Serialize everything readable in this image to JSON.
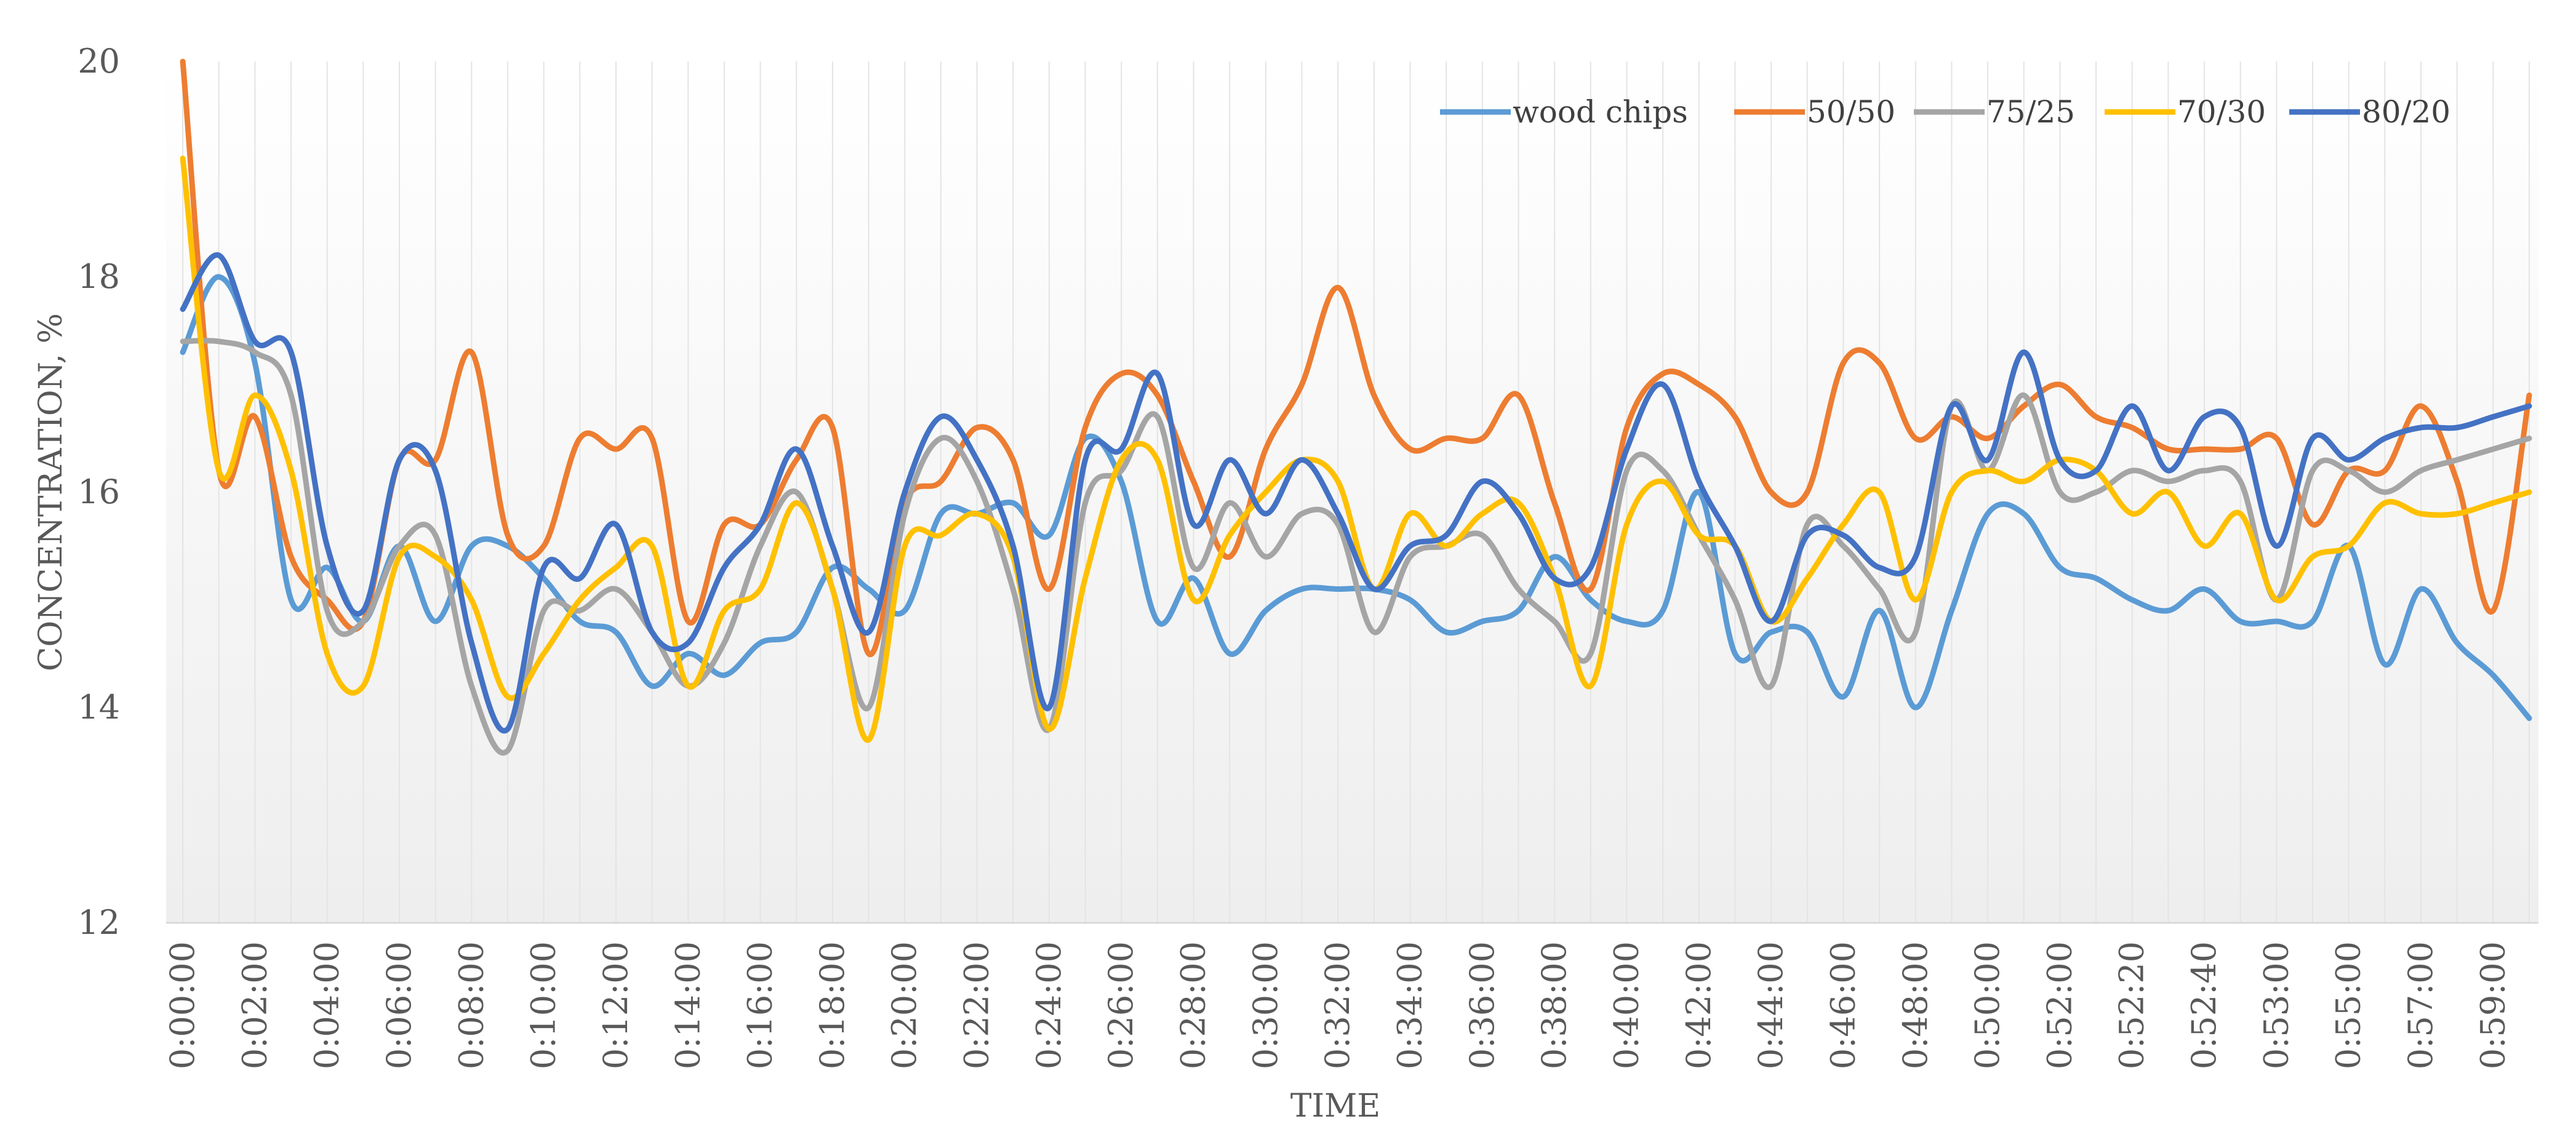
{
  "chart_data": {
    "type": "line",
    "title": "",
    "xlabel": "TIME",
    "ylabel": "CONCENTRATION, %",
    "ylim": [
      12,
      20
    ],
    "yticks": [
      12,
      14,
      16,
      18,
      20
    ],
    "legend_position": "top-right",
    "grid": "vertical",
    "categories": [
      "0:00:00",
      "0:01:00",
      "0:02:00",
      "0:03:00",
      "0:04:00",
      "0:05:00",
      "0:06:00",
      "0:07:00",
      "0:08:00",
      "0:09:00",
      "0:10:00",
      "0:11:00",
      "0:12:00",
      "0:13:00",
      "0:14:00",
      "0:15:00",
      "0:16:00",
      "0:17:00",
      "0:18:00",
      "0:19:00",
      "0:20:00",
      "0:21:00",
      "0:22:00",
      "0:23:00",
      "0:24:00",
      "0:25:00",
      "0:26:00",
      "0:27:00",
      "0:28:00",
      "0:29:00",
      "0:30:00",
      "0:31:00",
      "0:32:00",
      "0:33:00",
      "0:34:00",
      "0:35:00",
      "0:36:00",
      "0:37:00",
      "0:38:00",
      "0:39:00",
      "0:40:00",
      "0:41:00",
      "0:42:00",
      "0:43:00",
      "0:44:00",
      "0:45:00",
      "0:46:00",
      "0:47:00",
      "0:48:00",
      "0:49:00",
      "0:50:00",
      "0:51:00",
      "0:52:00",
      "0:52:10",
      "0:52:20",
      "0:52:30",
      "0:52:40",
      "0:52:50",
      "0:53:00",
      "0:54:00",
      "0:55:00",
      "0:56:00",
      "0:57:00",
      "0:58:00",
      "0:59:00",
      "1:00:00"
    ],
    "tick_labels_shown": [
      "0:00:00",
      "0:02:00",
      "0:04:00",
      "0:06:00",
      "0:08:00",
      "0:10:00",
      "0:12:00",
      "0:14:00",
      "0:16:00",
      "0:18:00",
      "0:20:00",
      "0:22:00",
      "0:24:00",
      "0:26:00",
      "0:28:00",
      "0:30:00",
      "0:32:00",
      "0:34:00",
      "0:36:00",
      "0:38:00",
      "0:40:00",
      "0:42:00",
      "0:44:00",
      "0:46:00",
      "0:48:00",
      "0:50:00",
      "0:52:00",
      "0:52:20",
      "0:52:40",
      "0:53:00",
      "0:55:00",
      "0:57:00",
      "0:59:00"
    ],
    "series": [
      {
        "name": "wood chips",
        "color": "#5B9BD5",
        "values": [
          17.3,
          18.0,
          17.2,
          15.0,
          15.3,
          14.8,
          15.5,
          14.8,
          15.5,
          15.5,
          15.2,
          14.8,
          14.7,
          14.2,
          14.5,
          14.3,
          14.6,
          14.7,
          15.3,
          15.1,
          14.9,
          15.8,
          15.8,
          15.9,
          15.6,
          16.5,
          16.1,
          14.8,
          15.2,
          14.5,
          14.9,
          15.1,
          15.1,
          15.1,
          15.0,
          14.7,
          14.8,
          14.9,
          15.4,
          15.0,
          14.8,
          14.9,
          16.0,
          14.5,
          14.7,
          14.7,
          14.1,
          14.9,
          14.0,
          14.9,
          15.8,
          15.8,
          15.3,
          15.2,
          15.0,
          14.9,
          15.1,
          14.8,
          14.8,
          14.8,
          15.5,
          14.4,
          15.1,
          14.6,
          14.3,
          13.9
        ]
      },
      {
        "name": "50/50",
        "color": "#ED7D31",
        "values": [
          20.0,
          16.2,
          16.7,
          15.4,
          15.0,
          14.8,
          16.3,
          16.3,
          17.3,
          15.6,
          15.5,
          16.5,
          16.4,
          16.5,
          14.8,
          15.7,
          15.7,
          16.3,
          16.6,
          14.5,
          15.9,
          16.1,
          16.6,
          16.3,
          15.1,
          16.6,
          17.1,
          16.9,
          16.1,
          15.4,
          16.4,
          17.0,
          17.9,
          16.9,
          16.4,
          16.5,
          16.5,
          16.9,
          15.9,
          15.1,
          16.6,
          17.1,
          17.0,
          16.7,
          16.0,
          16.0,
          17.2,
          17.2,
          16.5,
          16.7,
          16.5,
          16.8,
          17.0,
          16.7,
          16.6,
          16.4,
          16.4,
          16.4,
          16.5,
          15.7,
          16.2,
          16.2,
          16.8,
          16.1,
          14.9,
          16.9
        ]
      },
      {
        "name": "75/25",
        "color": "#A5A5A5",
        "values": [
          17.4,
          17.4,
          17.3,
          16.9,
          14.9,
          14.8,
          15.5,
          15.6,
          14.2,
          13.6,
          14.9,
          14.9,
          15.1,
          14.7,
          14.2,
          14.6,
          15.5,
          16.0,
          15.1,
          14.0,
          15.8,
          16.5,
          16.1,
          15.1,
          13.8,
          15.9,
          16.2,
          16.7,
          15.3,
          15.9,
          15.4,
          15.8,
          15.7,
          14.7,
          15.4,
          15.5,
          15.6,
          15.1,
          14.8,
          14.5,
          16.2,
          16.2,
          15.6,
          15.0,
          14.2,
          15.7,
          15.5,
          15.1,
          14.7,
          16.8,
          16.2,
          16.9,
          16.0,
          16.0,
          16.2,
          16.1,
          16.2,
          16.1,
          15.0,
          16.2,
          16.2,
          16.0,
          16.2,
          16.3,
          16.4,
          16.5
        ]
      },
      {
        "name": "70/30",
        "color": "#FFC000",
        "values": [
          19.1,
          16.2,
          16.9,
          16.2,
          14.5,
          14.2,
          15.4,
          15.4,
          15.0,
          14.1,
          14.5,
          15.0,
          15.3,
          15.5,
          14.2,
          14.9,
          15.1,
          15.9,
          15.1,
          13.7,
          15.5,
          15.6,
          15.8,
          15.4,
          13.8,
          15.2,
          16.3,
          16.3,
          15.0,
          15.6,
          16.0,
          16.3,
          16.1,
          15.1,
          15.8,
          15.5,
          15.8,
          15.9,
          15.2,
          14.2,
          15.7,
          16.1,
          15.6,
          15.5,
          14.8,
          15.2,
          15.7,
          16.0,
          15.0,
          16.0,
          16.2,
          16.1,
          16.3,
          16.2,
          15.8,
          16.0,
          15.5,
          15.8,
          15.0,
          15.4,
          15.5,
          15.9,
          15.8,
          15.8,
          15.9,
          16.0
        ]
      },
      {
        "name": "80/20",
        "color": "#4472C4",
        "values": [
          17.7,
          18.2,
          17.4,
          17.3,
          15.5,
          14.9,
          16.3,
          16.2,
          14.6,
          13.8,
          15.3,
          15.2,
          15.7,
          14.7,
          14.6,
          15.3,
          15.7,
          16.4,
          15.5,
          14.7,
          16.0,
          16.7,
          16.3,
          15.5,
          14.0,
          16.3,
          16.4,
          17.1,
          15.7,
          16.3,
          15.8,
          16.3,
          15.8,
          15.1,
          15.5,
          15.6,
          16.1,
          15.8,
          15.2,
          15.3,
          16.4,
          17.0,
          16.1,
          15.5,
          14.8,
          15.6,
          15.6,
          15.3,
          15.4,
          16.8,
          16.3,
          17.3,
          16.3,
          16.2,
          16.8,
          16.2,
          16.7,
          16.6,
          15.5,
          16.5,
          16.3,
          16.5,
          16.6,
          16.6,
          16.7,
          16.8
        ]
      }
    ]
  }
}
